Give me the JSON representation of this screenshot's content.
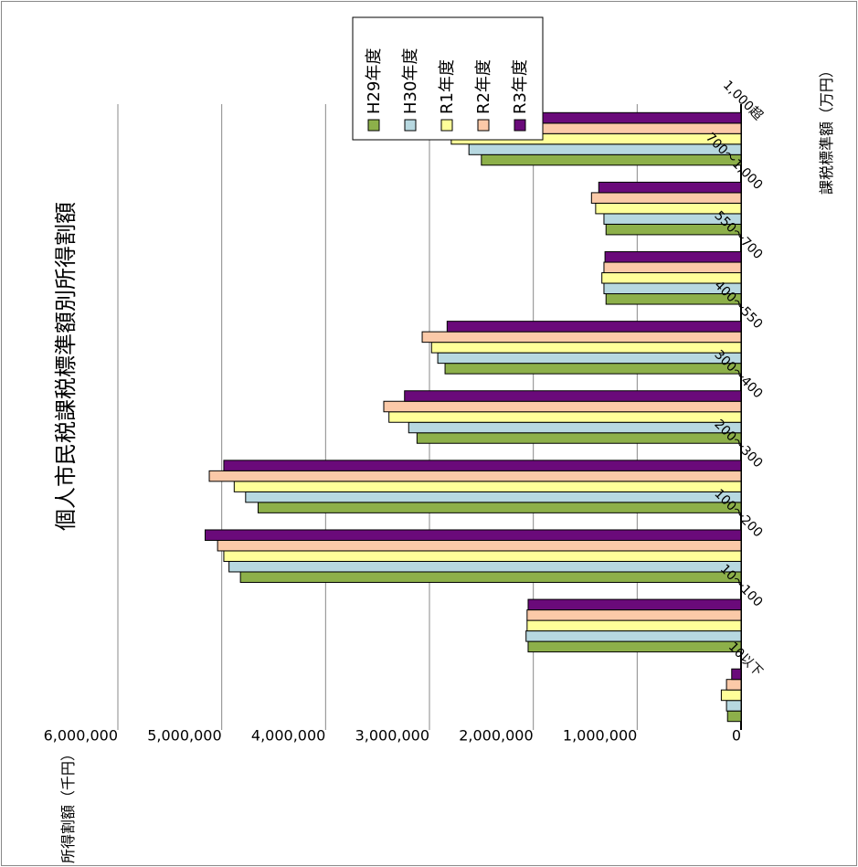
{
  "chart_data": {
    "type": "bar",
    "orientation": "horizontal",
    "title": "個人市民税課税標準額別所得割額",
    "ylabel": "所得割額（千円）",
    "xlabel": "課税標準額（万円）",
    "categories": [
      "10以下",
      "10～100",
      "100～200",
      "200～300",
      "300～400",
      "400～550",
      "550～700",
      "700～1,000",
      "1,000超"
    ],
    "value_ticks": [
      "0",
      "1,000,000",
      "2,000,000",
      "3,000,000",
      "4,000,000",
      "5,000,000",
      "6,000,000"
    ],
    "ylim": [
      0,
      6000000
    ],
    "grid": true,
    "legend_position": "top-right",
    "series": [
      {
        "name": "H29年度",
        "color": "#8db04a",
        "values": [
          130000,
          2050000,
          4820000,
          4650000,
          3120000,
          2850000,
          1300000,
          1300000,
          2500000
        ]
      },
      {
        "name": "H30年度",
        "color": "#b7d8e0",
        "values": [
          140000,
          2070000,
          4930000,
          4770000,
          3200000,
          2920000,
          1320000,
          1320000,
          2620000
        ]
      },
      {
        "name": "R1年度",
        "color": "#ffff99",
        "values": [
          190000,
          2060000,
          4980000,
          4880000,
          3390000,
          2980000,
          1340000,
          1400000,
          2790000
        ]
      },
      {
        "name": "R2年度",
        "color": "#fbc9a8",
        "values": [
          140000,
          2060000,
          5040000,
          5120000,
          3440000,
          3070000,
          1320000,
          1440000,
          2750000
        ]
      },
      {
        "name": "R3年度",
        "color": "#6a0a7a",
        "values": [
          90000,
          2050000,
          5160000,
          4980000,
          3240000,
          2830000,
          1310000,
          1370000,
          2650000
        ]
      }
    ]
  }
}
